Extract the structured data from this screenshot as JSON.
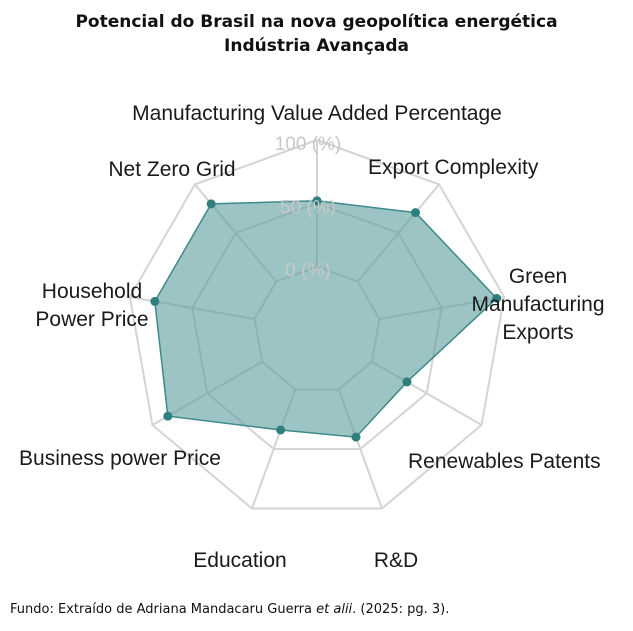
{
  "chart_data": {
    "type": "radar",
    "title": "Potencial do Brasil na nova geopolítica energética",
    "subtitle": "Indústria Avançada",
    "axes": [
      "Manufacturing Value Added Percentage",
      "Export Complexity",
      "Green Manufacturing Exports",
      "Renewables Patents",
      "R&D",
      "Education",
      "Business power Price",
      "Household Power Price",
      "Net Zero Grid"
    ],
    "ticks": [
      "0 (%)",
      "50 (%)",
      "100 (%)"
    ],
    "range": [
      -50,
      100
    ],
    "grid": true,
    "series": [
      {
        "values": [
          52,
          71,
          94,
          32,
          40,
          34,
          86,
          80,
          80
        ]
      }
    ],
    "colors": {
      "fill": "#5c9c9c",
      "stroke": "#3e8a8a",
      "point": "#2f7f7f",
      "grid": "#d4d4d4"
    }
  },
  "source": {
    "prefix": "Fundo: Extraído de Adriana Mandacaru Guerra ",
    "emphasis": "et alii",
    "suffix": ". (2025: pg. 3)."
  }
}
